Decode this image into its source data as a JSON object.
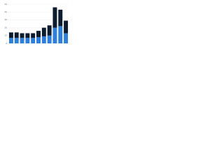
{
  "chart_data": {
    "type": "stacked-bar",
    "categories": [
      null,
      null,
      null,
      null,
      null,
      null,
      null,
      null,
      null,
      null,
      null
    ],
    "series": [
      {
        "color": "#2f7ed8",
        "values": [
          7,
          7,
          7,
          7,
          7,
          8,
          9,
          10,
          20,
          22,
          13
        ]
      },
      {
        "color": "#0d1b2e",
        "values": [
          7,
          7,
          6,
          6,
          6,
          8,
          11,
          13,
          26,
          21,
          16
        ]
      }
    ],
    "ylim": [
      0,
      50
    ],
    "yticks": [
      0,
      10,
      20,
      30,
      40,
      50
    ],
    "grid": true
  }
}
